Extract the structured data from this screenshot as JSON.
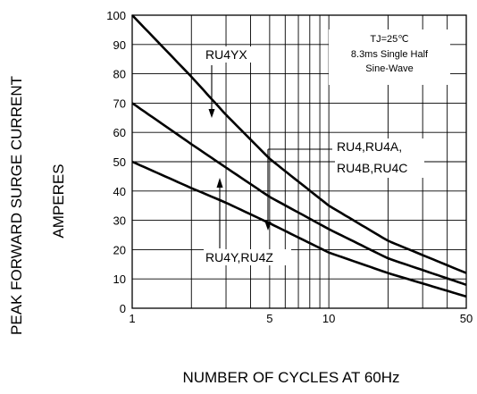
{
  "chart_data": {
    "type": "line",
    "xlabel": "NUMBER OF CYCLES AT 60Hz",
    "ylabel_line1": "PEAK FORWARD SURGE CURRENT",
    "ylabel_line2": "AMPERES",
    "xscale": "log",
    "xlim": [
      1,
      50
    ],
    "ylim": [
      0,
      100
    ],
    "x_tick_labels": [
      {
        "value": 1,
        "label": "1"
      },
      {
        "value": 5,
        "label": "5"
      },
      {
        "value": 10,
        "label": "10"
      },
      {
        "value": 50,
        "label": "50"
      }
    ],
    "x_minor_ticks": [
      2,
      3,
      4,
      5,
      6,
      7,
      8,
      9,
      10,
      20,
      30,
      40,
      50
    ],
    "y_ticks": [
      0,
      10,
      20,
      30,
      40,
      50,
      60,
      70,
      80,
      90,
      100
    ],
    "grid": true,
    "conditions": [
      "TJ=25℃",
      "8.3ms Single Half",
      "Sine-Wave"
    ],
    "series": [
      {
        "name": "RU4YX",
        "x": [
          1,
          2,
          3,
          5,
          10,
          20,
          50
        ],
        "y": [
          100,
          79,
          66,
          51,
          35,
          23,
          12
        ]
      },
      {
        "name": "RU4,RU4A, RU4B,RU4C",
        "x": [
          1,
          2,
          3,
          5,
          10,
          20,
          50
        ],
        "y": [
          70,
          56,
          48,
          38,
          27,
          17,
          8
        ]
      },
      {
        "name": "RU4Y,RU4Z",
        "x": [
          1,
          2,
          3,
          5,
          10,
          20,
          50
        ],
        "y": [
          50,
          41,
          36,
          29,
          19,
          12,
          4
        ]
      }
    ],
    "labels": {
      "ru4yx": "RU4YX",
      "ru4_line1": "RU4,RU4A,",
      "ru4_line2": "RU4B,RU4C",
      "ru4y": "RU4Y,RU4Z"
    }
  }
}
